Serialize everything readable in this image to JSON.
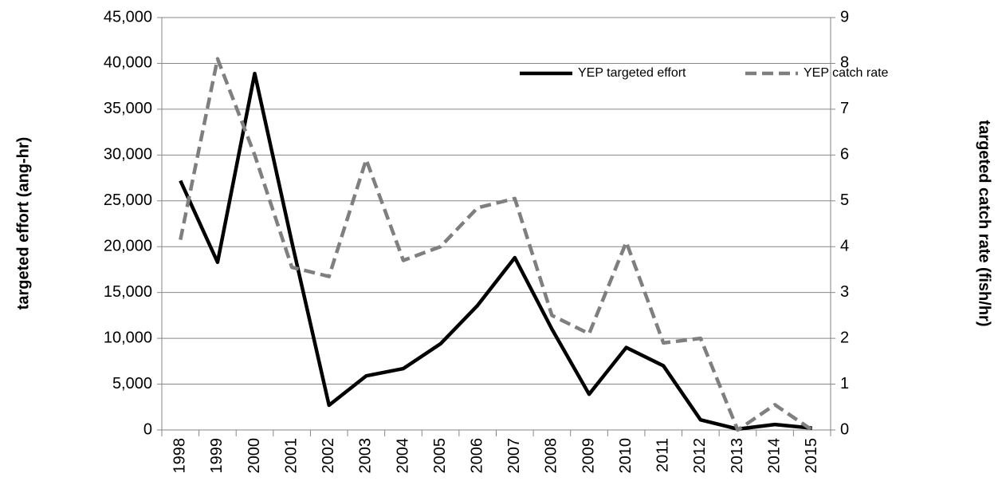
{
  "chart_data": {
    "type": "line",
    "categories": [
      "1998",
      "1999",
      "2000",
      "2001",
      "2002",
      "2003",
      "2004",
      "2005",
      "2006",
      "2007",
      "2008",
      "2009",
      "2010",
      "2011",
      "2012",
      "2013",
      "2014",
      "2015"
    ],
    "series": [
      {
        "name": "YEP targeted effort",
        "color": "#000000",
        "dash": false,
        "axis": "y",
        "values": [
          27200,
          18300,
          38900,
          20500,
          2700,
          5900,
          6700,
          9400,
          13600,
          18800,
          11000,
          3900,
          9000,
          7000,
          1100,
          100,
          600,
          200
        ]
      },
      {
        "name": "YEP catch rate",
        "color": "#7f7f7f",
        "dash": true,
        "axis": "y2",
        "values": [
          4.15,
          8.1,
          6.0,
          3.55,
          3.35,
          5.9,
          3.7,
          4.0,
          4.85,
          5.05,
          2.5,
          2.1,
          4.1,
          1.9,
          2.0,
          0.0,
          0.55,
          0.0
        ]
      }
    ],
    "ylabel": "targeted effort (ang-hr)",
    "y2label": "targeted catch rate (fish/hr)",
    "ylim": [
      0,
      45000
    ],
    "yticks": [
      0,
      {
        "value": 5000,
        "label": "5,000"
      },
      {
        "value": 10000,
        "label": "10,000"
      },
      {
        "value": 15000,
        "label": "15,000"
      },
      {
        "value": 20000,
        "label": "20,000"
      },
      {
        "value": 25000,
        "label": "25,000"
      },
      {
        "value": 30000,
        "label": "30,000"
      },
      {
        "value": 35000,
        "label": "35,000"
      },
      {
        "value": 40000,
        "label": "40,000"
      },
      {
        "value": 45000,
        "label": "45,000"
      }
    ],
    "y2lim": [
      0,
      9
    ],
    "y2ticks": [
      0,
      1,
      2,
      3,
      4,
      5,
      6,
      7,
      8,
      9
    ],
    "grid": true,
    "legend": "top-right"
  }
}
